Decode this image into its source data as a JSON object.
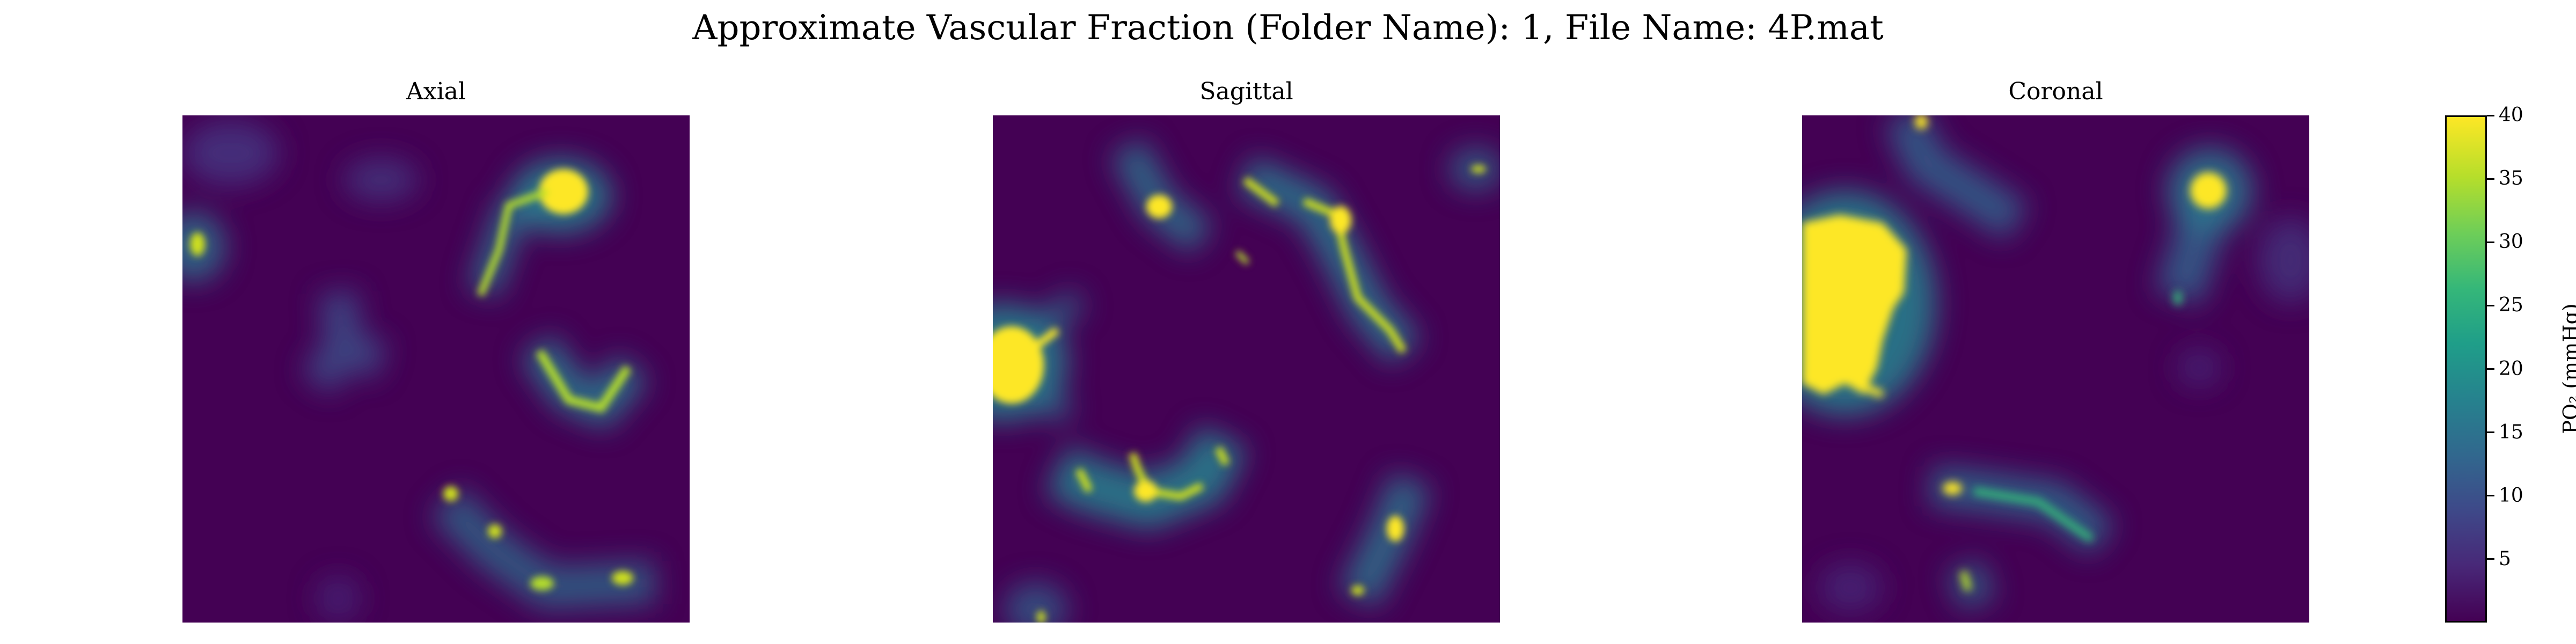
{
  "figure": {
    "title": "Approximate Vascular Fraction (Folder Name): 1, File Name: 4P.mat"
  },
  "chart_data": [
    {
      "type": "heatmap",
      "title": "Axial",
      "xlabel": "",
      "ylabel": "",
      "axes_visible": false,
      "colormap": "viridis",
      "color_range": [
        0,
        40
      ],
      "regions": [
        {
          "label": "bright blob",
          "x": [
            0.75,
            0.8
          ],
          "y": [
            0.12,
            0.2
          ],
          "value": 40
        },
        {
          "label": "thin vessel",
          "x": [
            0.57,
            0.65
          ],
          "y": [
            0.2,
            0.36
          ],
          "value": 32
        },
        {
          "label": "left edge spot",
          "x": [
            0.0,
            0.05
          ],
          "y": [
            0.23,
            0.28
          ],
          "value": 38
        },
        {
          "label": "V-shaped vessel",
          "x": [
            0.7,
            0.88
          ],
          "y": [
            0.48,
            0.58
          ],
          "value": 34
        },
        {
          "label": "faint Y structure",
          "x": [
            0.26,
            0.4
          ],
          "y": [
            0.33,
            0.55
          ],
          "value": 10
        },
        {
          "label": "lower chain",
          "x": [
            0.52,
            0.92
          ],
          "y": [
            0.74,
            0.95
          ],
          "value": 34
        }
      ]
    },
    {
      "type": "heatmap",
      "title": "Sagittal",
      "xlabel": "",
      "ylabel": "",
      "axes_visible": false,
      "colormap": "viridis",
      "color_range": [
        0,
        40
      ],
      "regions": [
        {
          "label": "left edge blob",
          "x": [
            0.0,
            0.08
          ],
          "y": [
            0.42,
            0.55
          ],
          "value": 40
        },
        {
          "label": "upper spot",
          "x": [
            0.29,
            0.36
          ],
          "y": [
            0.16,
            0.21
          ],
          "value": 40
        },
        {
          "label": "long vessel",
          "x": [
            0.62,
            0.82
          ],
          "y": [
            0.17,
            0.48
          ],
          "value": 34
        },
        {
          "label": "right edge spot",
          "x": [
            0.93,
            0.99
          ],
          "y": [
            0.09,
            0.12
          ],
          "value": 32
        },
        {
          "label": "lower cluster",
          "x": [
            0.17,
            0.47
          ],
          "y": [
            0.66,
            0.78
          ],
          "value": 36
        },
        {
          "label": "lower right vessel",
          "x": [
            0.72,
            0.82
          ],
          "y": [
            0.78,
            0.95
          ],
          "value": 34
        }
      ]
    },
    {
      "type": "heatmap",
      "title": "Coronal",
      "xlabel": "",
      "ylabel": "",
      "axes_visible": false,
      "colormap": "viridis",
      "color_range": [
        0,
        40
      ],
      "regions": [
        {
          "label": "large blob",
          "x": [
            0.0,
            0.2
          ],
          "y": [
            0.2,
            0.56
          ],
          "value": 40
        },
        {
          "label": "upper right blob",
          "x": [
            0.74,
            0.82
          ],
          "y": [
            0.11,
            0.18
          ],
          "value": 40
        },
        {
          "label": "top vessel",
          "x": [
            0.2,
            0.42
          ],
          "y": [
            0.0,
            0.2
          ],
          "value": 16
        },
        {
          "label": "right tail",
          "x": [
            0.7,
            0.85
          ],
          "y": [
            0.18,
            0.38
          ],
          "value": 18
        },
        {
          "label": "lower vessel",
          "x": [
            0.26,
            0.6
          ],
          "y": [
            0.7,
            0.76
          ],
          "value": 26
        },
        {
          "label": "bottom segment",
          "x": [
            0.31,
            0.4
          ],
          "y": [
            0.88,
            0.96
          ],
          "value": 28
        }
      ]
    }
  ],
  "colorbar": {
    "label": "PO$_2$ (mmHg)",
    "label_rendered": "PO₂ (mmHg)",
    "min": 0,
    "max": 40,
    "ticks": [
      5,
      10,
      15,
      20,
      25,
      30,
      35,
      40
    ],
    "colormap": "viridis",
    "palette": [
      "#440154",
      "#482878",
      "#3e4989",
      "#31688e",
      "#26828e",
      "#1f9e89",
      "#35b779",
      "#6ece58",
      "#b5de2b",
      "#fde725"
    ]
  }
}
